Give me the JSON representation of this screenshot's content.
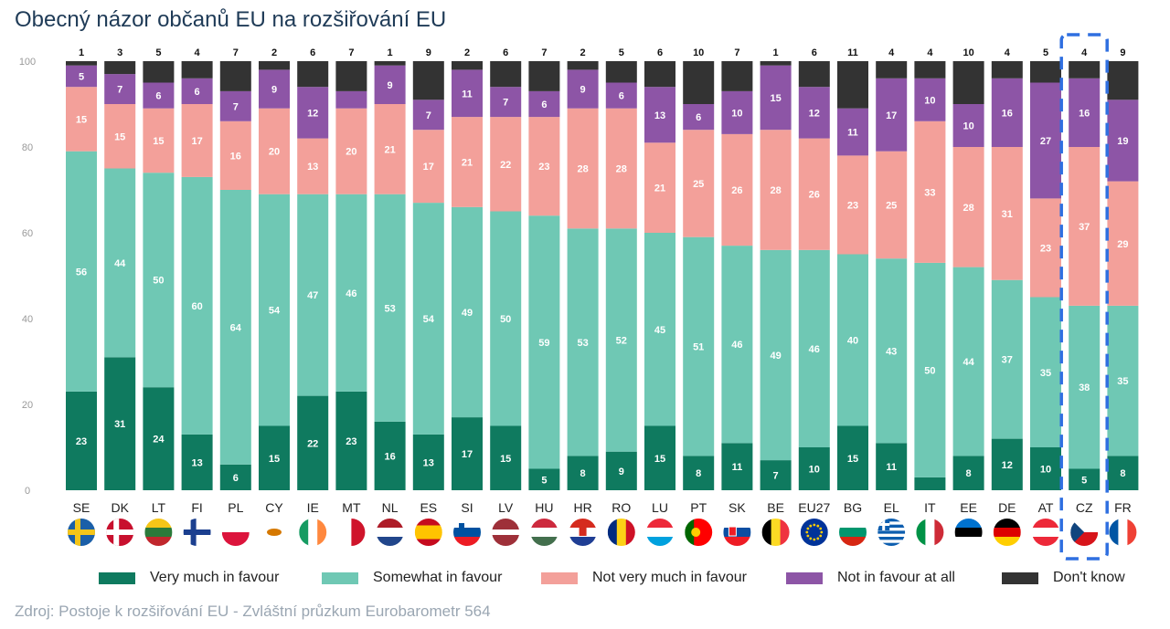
{
  "title": "Obecný názor občanů EU na rozšiřování EU",
  "source": "Zdroj: Postoje k rozšiřování EU - Zvláštní průzkum Eurobarometr 564",
  "colors": {
    "very_much": "#0f7a5f",
    "somewhat": "#6fc8b4",
    "not_very": "#f3a09a",
    "not_at_all": "#8d55a6",
    "dont_know": "#333333",
    "highlight": "#2f6fe0"
  },
  "highlight_category": "CZ",
  "flag_icons": [
    "sweden-flag-icon",
    "denmark-flag-icon",
    "lithuania-flag-icon",
    "finland-flag-icon",
    "poland-flag-icon",
    "cyprus-flag-icon",
    "ireland-flag-icon",
    "malta-flag-icon",
    "netherlands-flag-icon",
    "spain-flag-icon",
    "slovenia-flag-icon",
    "latvia-flag-icon",
    "hungary-flag-icon",
    "croatia-flag-icon",
    "romania-flag-icon",
    "luxembourg-flag-icon",
    "portugal-flag-icon",
    "slovakia-flag-icon",
    "belgium-flag-icon",
    "eu-flag-icon",
    "bulgaria-flag-icon",
    "greece-flag-icon",
    "italy-flag-icon",
    "estonia-flag-icon",
    "germany-flag-icon",
    "austria-flag-icon",
    "czechia-flag-icon",
    "france-flag-icon"
  ],
  "chart_data": {
    "type": "bar",
    "stacked": true,
    "orientation": "vertical",
    "ylim": [
      0,
      100
    ],
    "yticks": [
      0,
      20,
      40,
      60,
      80,
      100
    ],
    "legend_position": "bottom",
    "grid": false,
    "categories": [
      "SE",
      "DK",
      "LT",
      "FI",
      "PL",
      "CY",
      "IE",
      "MT",
      "NL",
      "ES",
      "SI",
      "LV",
      "HU",
      "HR",
      "RO",
      "LU",
      "PT",
      "SK",
      "BE",
      "EU27",
      "BG",
      "EL",
      "IT",
      "EE",
      "DE",
      "AT",
      "CZ",
      "FR"
    ],
    "series": [
      {
        "name": "Very much in favour",
        "values": [
          23,
          31,
          24,
          13,
          6,
          15,
          22,
          23,
          16,
          13,
          17,
          15,
          5,
          8,
          9,
          15,
          8,
          11,
          7,
          10,
          15,
          11,
          3,
          8,
          12,
          10,
          5,
          8
        ],
        "labels": [
          "23",
          "31",
          "24",
          "13",
          "6",
          "15",
          "22",
          "23",
          "16",
          "13",
          "17",
          "15",
          "5",
          "8",
          "9",
          "15",
          "8",
          "11",
          "7",
          "10",
          "15",
          "11",
          "",
          "8",
          "12",
          "10",
          "5",
          "8"
        ]
      },
      {
        "name": "Somewhat in favour",
        "values": [
          56,
          44,
          50,
          60,
          64,
          54,
          47,
          46,
          53,
          54,
          49,
          50,
          59,
          53,
          52,
          45,
          51,
          46,
          49,
          46,
          40,
          43,
          50,
          44,
          37,
          35,
          38,
          35
        ]
      },
      {
        "name": "Not very much in favour",
        "values": [
          15,
          15,
          15,
          17,
          16,
          20,
          13,
          20,
          21,
          17,
          21,
          22,
          23,
          28,
          28,
          21,
          25,
          26,
          28,
          26,
          23,
          25,
          33,
          28,
          31,
          23,
          37,
          29
        ]
      },
      {
        "name": "Not in favour at all",
        "values": [
          5,
          7,
          6,
          6,
          7,
          9,
          12,
          4,
          9,
          7,
          11,
          7,
          6,
          9,
          6,
          13,
          6,
          10,
          15,
          12,
          11,
          17,
          10,
          10,
          16,
          27,
          16,
          19
        ],
        "labels": [
          "5",
          "7",
          "6",
          "6",
          "7",
          "9",
          "12",
          "",
          "9",
          "7",
          "11",
          "7",
          "6",
          "9",
          "6",
          "13",
          "6",
          "10",
          "15",
          "12",
          "11",
          "17",
          "10",
          "10",
          "16",
          "27",
          "16",
          "19"
        ]
      },
      {
        "name": "Don't know",
        "values": [
          1,
          3,
          5,
          4,
          7,
          2,
          6,
          7,
          1,
          9,
          2,
          6,
          7,
          2,
          5,
          6,
          10,
          7,
          1,
          6,
          11,
          4,
          4,
          10,
          4,
          5,
          4,
          9
        ]
      }
    ]
  }
}
